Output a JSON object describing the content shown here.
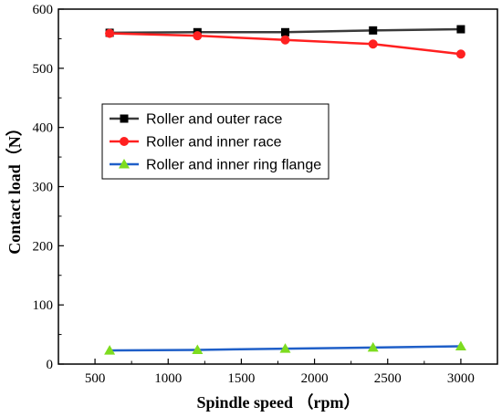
{
  "chart_data": {
    "type": "line",
    "xlabel": "Spindle speed （rpm）",
    "ylabel": "Contact load（N）",
    "xlim": [
      250,
      3250
    ],
    "ylim": [
      0,
      600
    ],
    "x_ticks": [
      500,
      1000,
      1500,
      2000,
      2500,
      3000
    ],
    "y_ticks": [
      0,
      100,
      200,
      300,
      400,
      500,
      600
    ],
    "legend_position": "middle-left",
    "grid": false,
    "x": [
      600,
      1200,
      1800,
      2400,
      3000
    ],
    "series": [
      {
        "name": "Roller and outer race",
        "values": [
          560,
          561,
          561,
          564,
          566
        ],
        "color": "#3a3a3a",
        "marker": "square"
      },
      {
        "name": "Roller and inner race",
        "values": [
          559,
          555,
          548,
          541,
          524
        ],
        "color": "#ff2020",
        "marker": "circle"
      },
      {
        "name": "Roller and inner ring flange",
        "values": [
          23,
          24,
          26,
          28,
          30
        ],
        "color": "#1f5fc8",
        "marker": "triangle",
        "marker_color": "#7ddc1f"
      }
    ]
  }
}
